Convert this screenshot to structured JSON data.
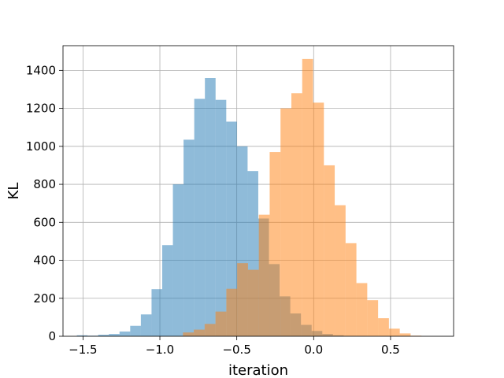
{
  "chart_data": {
    "type": "histogram",
    "title": "",
    "xlabel": "iteration",
    "ylabel": "KL",
    "xlim": [
      -1.63,
      0.91
    ],
    "ylim": [
      0,
      1530
    ],
    "grid": true,
    "xticks": [
      -1.5,
      -1.0,
      -0.5,
      0.0,
      0.5
    ],
    "xtick_labels": [
      "−1.5",
      "−1.0",
      "−0.5",
      "0.0",
      "0.5"
    ],
    "yticks": [
      0,
      200,
      400,
      600,
      800,
      1000,
      1200,
      1400
    ],
    "ytick_labels": [
      "0",
      "200",
      "400",
      "600",
      "800",
      "1000",
      "1200",
      "1400"
    ],
    "series": [
      {
        "color": "#1f77b4",
        "opacity": 0.5,
        "bin_start": -1.54,
        "bin_width": 0.0694,
        "values": [
          5,
          3,
          8,
          12,
          25,
          55,
          115,
          248,
          480,
          800,
          1035,
          1250,
          1360,
          1245,
          1130,
          1000,
          870,
          620,
          380,
          210,
          120,
          60,
          28,
          12,
          5,
          2,
          1
        ]
      },
      {
        "color": "#ff7f0e",
        "opacity": 0.5,
        "bin_start": -0.85,
        "bin_width": 0.0705,
        "values": [
          20,
          35,
          65,
          130,
          250,
          385,
          350,
          640,
          970,
          1200,
          1280,
          1460,
          1230,
          900,
          690,
          490,
          280,
          190,
          95,
          40,
          15,
          3
        ]
      }
    ]
  }
}
